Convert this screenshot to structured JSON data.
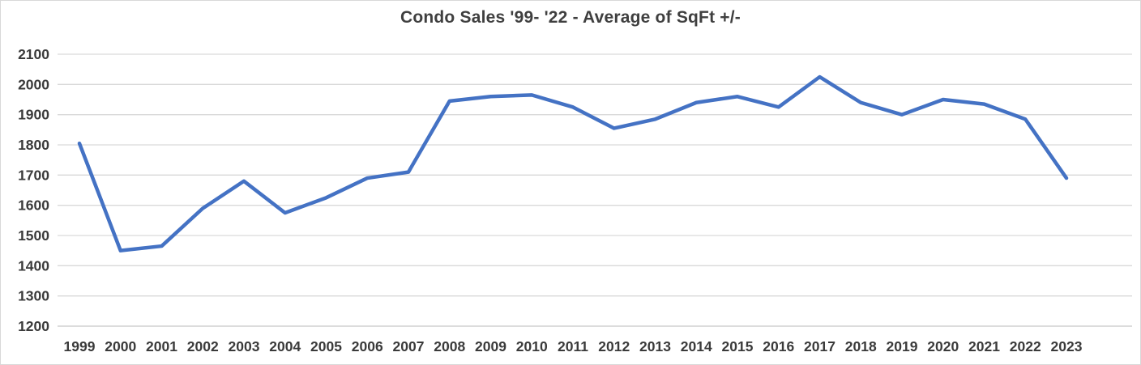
{
  "chart_data": {
    "type": "line",
    "title": "Condo Sales '99- '22 - Average of SqFt +/-",
    "categories": [
      "1999",
      "2000",
      "2001",
      "2002",
      "2003",
      "2004",
      "2005",
      "2006",
      "2007",
      "2008",
      "2009",
      "2010",
      "2011",
      "2012",
      "2013",
      "2014",
      "2015",
      "2016",
      "2017",
      "2018",
      "2019",
      "2020",
      "2021",
      "2022",
      "2023"
    ],
    "values": [
      1805,
      1450,
      1465,
      1590,
      1680,
      1575,
      1625,
      1690,
      1710,
      1945,
      1960,
      1965,
      1925,
      1855,
      1885,
      1940,
      1960,
      1925,
      2025,
      1940,
      1900,
      1950,
      1935,
      1885,
      1690
    ],
    "xlabel": "",
    "ylabel": "",
    "ylim": [
      1200,
      2100
    ],
    "ytick_step": 100,
    "yticks": [
      "2100",
      "2000",
      "1900",
      "1800",
      "1700",
      "1600",
      "1500",
      "1400",
      "1300",
      "1200"
    ],
    "grid": true,
    "legend_position": "none",
    "line_color": "#4472C4",
    "gridline_color": "#D9D9D9",
    "axis_line_color": "#c8c8c8",
    "title_color": "#3f3f3f",
    "tick_label_color": "#3a3a3a"
  }
}
